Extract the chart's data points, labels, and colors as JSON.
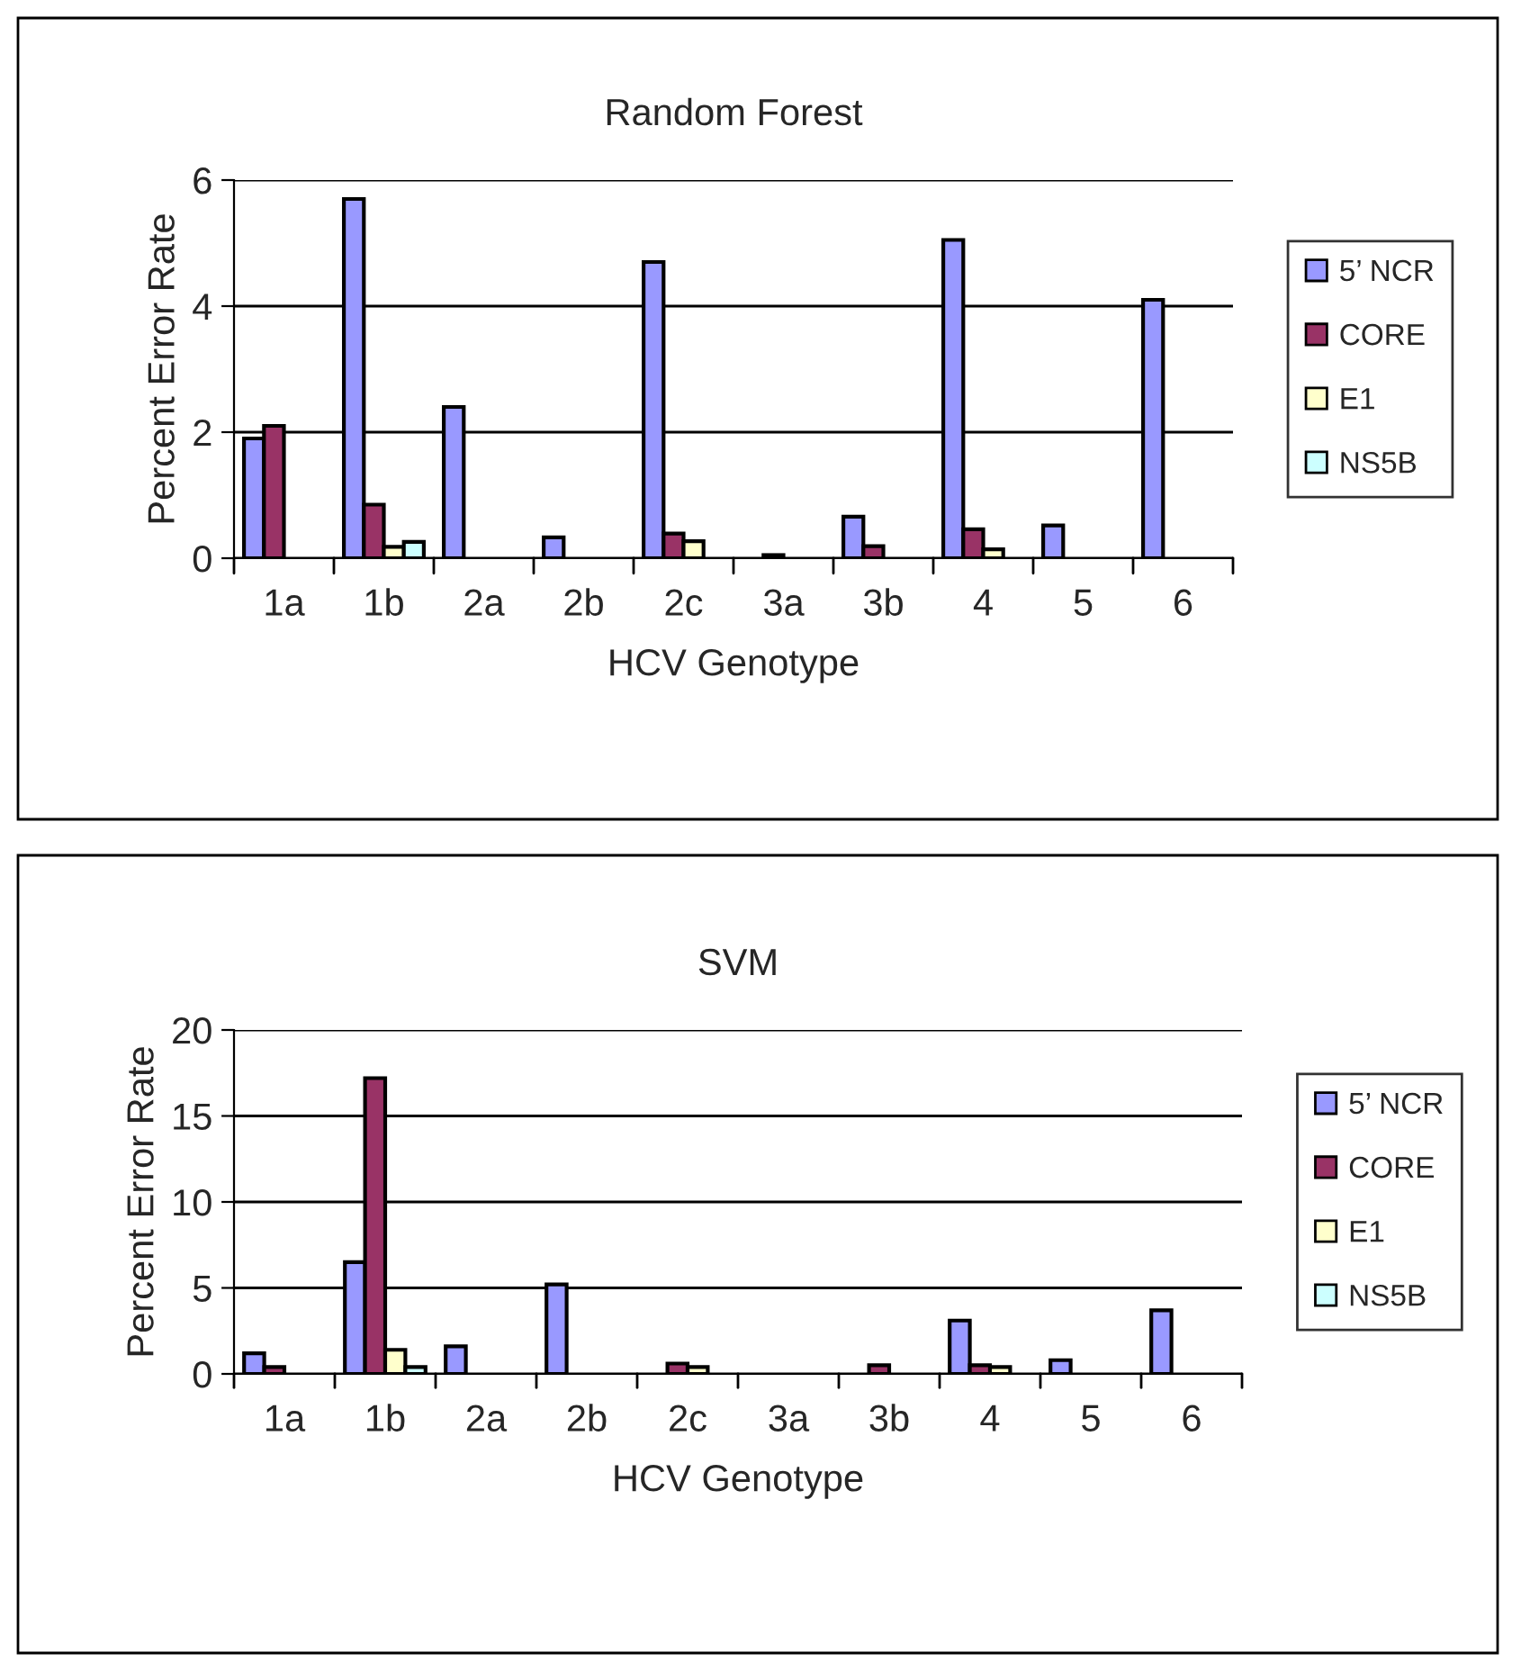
{
  "chart_data": [
    {
      "type": "bar",
      "title": "Random Forest",
      "xlabel": "HCV Genotype",
      "ylabel": "Percent Error Rate",
      "categories": [
        "1a",
        "1b",
        "2a",
        "2b",
        "2c",
        "3a",
        "3b",
        "4",
        "5",
        "6"
      ],
      "series": [
        {
          "name": "5’ NCR",
          "color": "#9999ff",
          "values": [
            1.9,
            5.7,
            2.4,
            0.33,
            4.7,
            null,
            0.66,
            5.05,
            0.52,
            4.1
          ]
        },
        {
          "name": "CORE",
          "color": "#993366",
          "values": [
            2.1,
            0.85,
            null,
            null,
            0.39,
            0.05,
            0.19,
            0.46,
            null,
            null
          ]
        },
        {
          "name": "E1",
          "color": "#ffffcc",
          "values": [
            null,
            0.18,
            null,
            null,
            0.27,
            null,
            null,
            0.14,
            null,
            null
          ]
        },
        {
          "name": "NS5B",
          "color": "#ccffff",
          "values": [
            null,
            0.26,
            null,
            null,
            null,
            null,
            null,
            null,
            null,
            null
          ]
        }
      ],
      "ylim": [
        0,
        6
      ],
      "yticks": [
        0,
        2,
        4,
        6
      ],
      "grid": "y",
      "legend": "right"
    },
    {
      "type": "bar",
      "title": "SVM",
      "xlabel": "HCV Genotype",
      "ylabel": "Percent Error Rate",
      "categories": [
        "1a",
        "1b",
        "2a",
        "2b",
        "2c",
        "3a",
        "3b",
        "4",
        "5",
        "6"
      ],
      "series": [
        {
          "name": "5’ NCR",
          "color": "#9999ff",
          "values": [
            1.2,
            6.5,
            1.6,
            5.2,
            null,
            null,
            null,
            3.1,
            0.8,
            3.7
          ]
        },
        {
          "name": "CORE",
          "color": "#993366",
          "values": [
            0.4,
            17.2,
            null,
            null,
            0.6,
            null,
            0.5,
            0.5,
            null,
            null
          ]
        },
        {
          "name": "E1",
          "color": "#ffffcc",
          "values": [
            null,
            1.4,
            null,
            null,
            0.4,
            null,
            null,
            0.4,
            null,
            null
          ]
        },
        {
          "name": "NS5B",
          "color": "#ccffff",
          "values": [
            null,
            0.4,
            null,
            null,
            null,
            null,
            null,
            null,
            null,
            null
          ]
        }
      ],
      "ylim": [
        0,
        20
      ],
      "yticks": [
        0,
        5,
        10,
        15,
        20
      ],
      "grid": "y",
      "legend": "right"
    }
  ]
}
